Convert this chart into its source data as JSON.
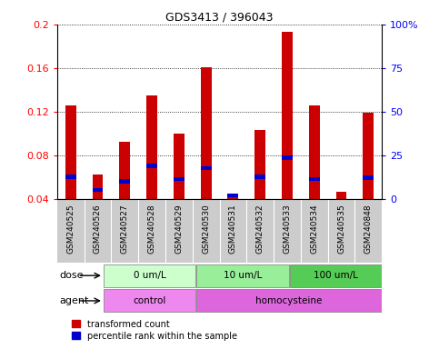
{
  "title": "GDS3413 / 396043",
  "samples": [
    "GSM240525",
    "GSM240526",
    "GSM240527",
    "GSM240528",
    "GSM240529",
    "GSM240530",
    "GSM240531",
    "GSM240532",
    "GSM240533",
    "GSM240534",
    "GSM240535",
    "GSM240848"
  ],
  "red_values": [
    0.126,
    0.062,
    0.092,
    0.135,
    0.1,
    0.161,
    0.042,
    0.103,
    0.193,
    0.126,
    0.046,
    0.119
  ],
  "blue_values": [
    0.06,
    0.048,
    0.056,
    0.07,
    0.058,
    0.068,
    0.043,
    0.06,
    0.078,
    0.058,
    0.0,
    0.059
  ],
  "ymin": 0.04,
  "ymax": 0.2,
  "yticks": [
    0.04,
    0.08,
    0.12,
    0.16,
    0.2
  ],
  "ytick_labels": [
    "0.04",
    "0.08",
    "0.12",
    "0.16",
    "0.2"
  ],
  "right_yticks": [
    0,
    25,
    50,
    75,
    100
  ],
  "right_ytick_labels": [
    "0",
    "25",
    "50",
    "75",
    "100%"
  ],
  "dose_groups": [
    {
      "label": "0 um/L",
      "start": 0,
      "end": 4,
      "color": "#ccffcc"
    },
    {
      "label": "10 um/L",
      "start": 4,
      "end": 8,
      "color": "#99ee99"
    },
    {
      "label": "100 um/L",
      "start": 8,
      "end": 12,
      "color": "#55cc55"
    }
  ],
  "agent_groups": [
    {
      "label": "control",
      "start": 0,
      "end": 4,
      "color": "#ee88ee"
    },
    {
      "label": "homocysteine",
      "start": 4,
      "end": 12,
      "color": "#dd66dd"
    }
  ],
  "dose_label": "dose",
  "agent_label": "agent",
  "bar_color_red": "#cc0000",
  "bar_color_blue": "#0000cc",
  "sample_bg_color": "#cccccc",
  "legend_red": "transformed count",
  "legend_blue": "percentile rank within the sample",
  "bar_width": 0.4
}
